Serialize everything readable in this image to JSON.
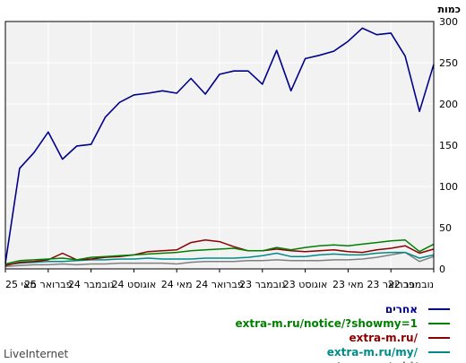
{
  "chart_data": {
    "type": "line",
    "unit_label": "כמות",
    "ylim": [
      0,
      300
    ],
    "y_ticks": [
      0,
      50,
      100,
      150,
      200,
      250,
      300
    ],
    "x_reversed": true,
    "x_tick_labels": [
      "נובמבר 22",
      "פברואר 23",
      "מאי 23",
      "אוגוסט 23",
      "נובמבר 23",
      "פברואר 24",
      "מאי 24",
      "אוגוסט 24",
      "נובמבר 24",
      "פברואר 25",
      "מאי 25"
    ],
    "grid": true,
    "legend_position": "bottom-right",
    "series": [
      {
        "name": "אחרים",
        "color": "#00008b",
        "values": [
          7,
          122,
          141,
          166,
          133,
          149,
          151,
          184,
          202,
          211,
          213,
          216,
          213,
          231,
          212,
          236,
          240,
          240,
          224,
          265,
          216,
          255,
          259,
          264,
          276,
          292,
          284,
          286,
          258,
          191,
          248
        ]
      },
      {
        "name": "extra-m.ru/notice/?showmy=1",
        "color": "#008000",
        "values": [
          6,
          10,
          11,
          12,
          13,
          11,
          14,
          15,
          16,
          17,
          18,
          19,
          20,
          22,
          23,
          24,
          25,
          22,
          22,
          26,
          23,
          26,
          28,
          29,
          28,
          30,
          32,
          34,
          35,
          21,
          30
        ]
      },
      {
        "name": "extra-m.ru/",
        "color": "#8b0000",
        "values": [
          4,
          8,
          9,
          11,
          19,
          11,
          12,
          14,
          15,
          17,
          21,
          22,
          23,
          32,
          35,
          33,
          27,
          22,
          22,
          24,
          22,
          21,
          22,
          23,
          21,
          20,
          23,
          25,
          28,
          19,
          24
        ]
      },
      {
        "name": "extra-m.ru/my/",
        "color": "#008b8b",
        "values": [
          5,
          7,
          8,
          9,
          9,
          10,
          11,
          11,
          12,
          12,
          13,
          12,
          12,
          12,
          13,
          13,
          13,
          14,
          16,
          19,
          15,
          15,
          17,
          18,
          17,
          17,
          19,
          20,
          20,
          13,
          17
        ]
      },
      {
        "name": "extra-m.ru/add/",
        "color": "#808080",
        "values": [
          3,
          4,
          5,
          5,
          6,
          5,
          6,
          6,
          7,
          7,
          7,
          7,
          6,
          8,
          9,
          9,
          9,
          10,
          10,
          11,
          10,
          10,
          10,
          11,
          11,
          12,
          14,
          17,
          20,
          9,
          15
        ]
      }
    ]
  },
  "footer": {
    "brand": "LiveInternet"
  }
}
